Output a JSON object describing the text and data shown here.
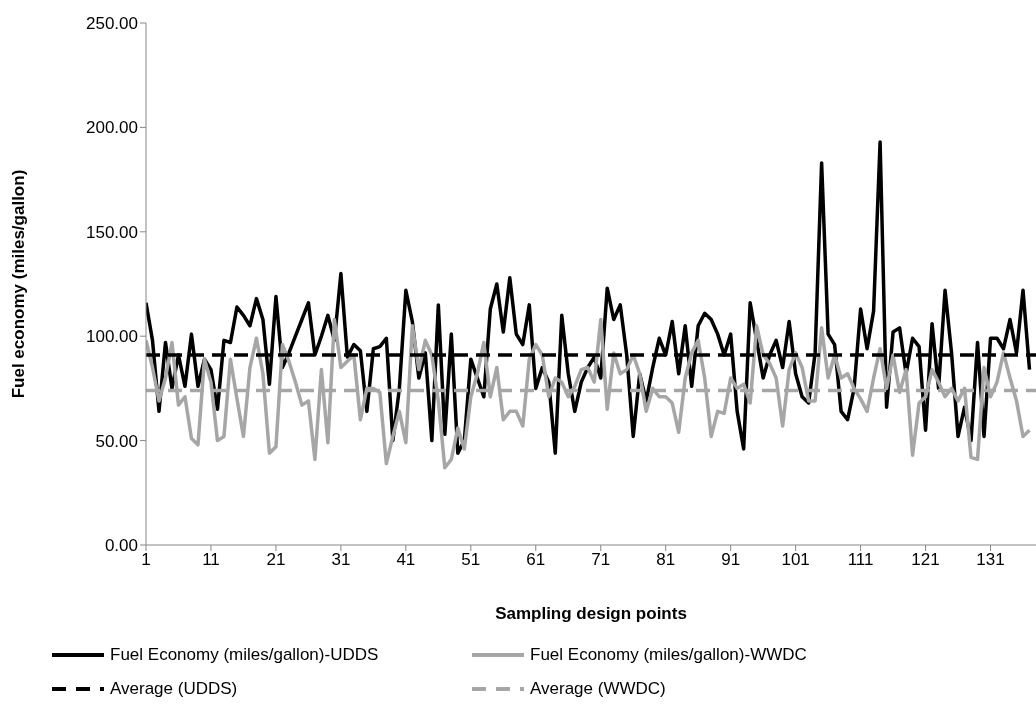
{
  "chart_data": {
    "type": "line",
    "xlabel": "Sampling design points",
    "ylabel": "Fuel economy (miles/gallon)",
    "x": [
      1,
      2,
      3,
      4,
      5,
      6,
      7,
      8,
      9,
      10,
      11,
      12,
      13,
      14,
      15,
      16,
      17,
      18,
      19,
      20,
      21,
      22,
      23,
      24,
      25,
      26,
      27,
      28,
      29,
      30,
      31,
      32,
      33,
      34,
      35,
      36,
      37,
      38,
      39,
      40,
      41,
      42,
      43,
      44,
      45,
      46,
      47,
      48,
      49,
      50,
      51,
      52,
      53,
      54,
      55,
      56,
      57,
      58,
      59,
      60,
      61,
      62,
      63,
      64,
      65,
      66,
      67,
      68,
      69,
      70,
      71,
      72,
      73,
      74,
      75,
      76,
      77,
      78,
      79,
      80,
      81,
      82,
      83,
      84,
      85,
      86,
      87,
      88,
      89,
      90,
      91,
      92,
      93,
      94,
      95,
      96,
      97,
      98,
      99,
      100,
      101,
      102,
      103,
      104,
      105,
      106,
      107,
      108,
      109,
      110,
      111,
      112,
      113,
      114,
      115,
      116,
      117,
      118,
      119,
      120,
      121,
      122,
      123,
      124,
      125,
      126,
      127,
      128,
      129,
      130,
      131,
      132,
      133,
      134,
      135,
      136,
      137
    ],
    "series": [
      {
        "name": "Fuel Economy (miles/gallon)-UDDS",
        "color": "#000000",
        "values": [
          116,
          98,
          64,
          97,
          75,
          91,
          76,
          101,
          76,
          89,
          84,
          65,
          98,
          97,
          114,
          110,
          105,
          118,
          108,
          77,
          119,
          85,
          92,
          100,
          108,
          116,
          91,
          100,
          110,
          98,
          130,
          90,
          96,
          93,
          64,
          94,
          95,
          99,
          50,
          75,
          122,
          107,
          80,
          92,
          50,
          115,
          53,
          101,
          44,
          50,
          89,
          80,
          71,
          113,
          125,
          102,
          128,
          101,
          96,
          115,
          75,
          85,
          78,
          44,
          110,
          82,
          64,
          78,
          85,
          90,
          80,
          123,
          108,
          115,
          91,
          52,
          82,
          69,
          85,
          99,
          91,
          107,
          82,
          105,
          76,
          105,
          111,
          108,
          101,
          91,
          101,
          64,
          46,
          116,
          98,
          80,
          91,
          98,
          85,
          107,
          82,
          71,
          68,
          92,
          183,
          101,
          96,
          64,
          60,
          75,
          113,
          94,
          112,
          193,
          66,
          102,
          104,
          82,
          99,
          95,
          55,
          106,
          75,
          122,
          92,
          52,
          66,
          50,
          97,
          52,
          99,
          99,
          94,
          108,
          92,
          122,
          84
        ]
      },
      {
        "name": "Fuel Economy (miles/gallon)-WWDC",
        "color": "#a6a6a6",
        "values": [
          98,
          85,
          69,
          80,
          97,
          67,
          71,
          51,
          48,
          89,
          78,
          50,
          52,
          89,
          70,
          52,
          85,
          99,
          82,
          44,
          47,
          96,
          88,
          78,
          67,
          69,
          41,
          84,
          49,
          108,
          85,
          88,
          91,
          60,
          75,
          75,
          73,
          39,
          52,
          64,
          49,
          105,
          84,
          98,
          91,
          69,
          37,
          41,
          56,
          46,
          71,
          82,
          97,
          71,
          85,
          60,
          64,
          64,
          57,
          89,
          96,
          91,
          71,
          80,
          78,
          71,
          76,
          84,
          85,
          78,
          108,
          65,
          92,
          82,
          84,
          91,
          82,
          64,
          75,
          71,
          71,
          68,
          54,
          80,
          92,
          98,
          80,
          52,
          64,
          63,
          80,
          75,
          77,
          68,
          105,
          91,
          87,
          80,
          57,
          84,
          92,
          85,
          69,
          69,
          104,
          80,
          91,
          80,
          82,
          75,
          70,
          64,
          80,
          94,
          75,
          91,
          73,
          84,
          43,
          68,
          71,
          84,
          78,
          71,
          75,
          69,
          75,
          42,
          41,
          85,
          71,
          78,
          92,
          80,
          69,
          52,
          55
        ]
      }
    ],
    "ref_lines": [
      {
        "axis": "y",
        "value": 91,
        "label": "Average (UDDS)",
        "color": "#000000",
        "line_style": "dashed"
      },
      {
        "axis": "y",
        "value": 74,
        "label": "Average (WWDC)",
        "color": "#a6a6a6",
        "line_style": "dashed"
      }
    ],
    "xlim": [
      1,
      138
    ],
    "xticks": [
      1,
      11,
      21,
      31,
      41,
      51,
      61,
      71,
      81,
      91,
      101,
      111,
      121,
      131
    ],
    "ylim": [
      0,
      250
    ],
    "yticks": [
      {
        "value": 0,
        "label": "0.00"
      },
      {
        "value": 50,
        "label": "50.00"
      },
      {
        "value": 100,
        "label": "100.00"
      },
      {
        "value": 150,
        "label": "150.00"
      },
      {
        "value": 200,
        "label": "200.00"
      },
      {
        "value": 250,
        "label": "250.00"
      }
    ],
    "grid": false,
    "legend": "bottom",
    "marker": "none",
    "line_style": "solid"
  }
}
